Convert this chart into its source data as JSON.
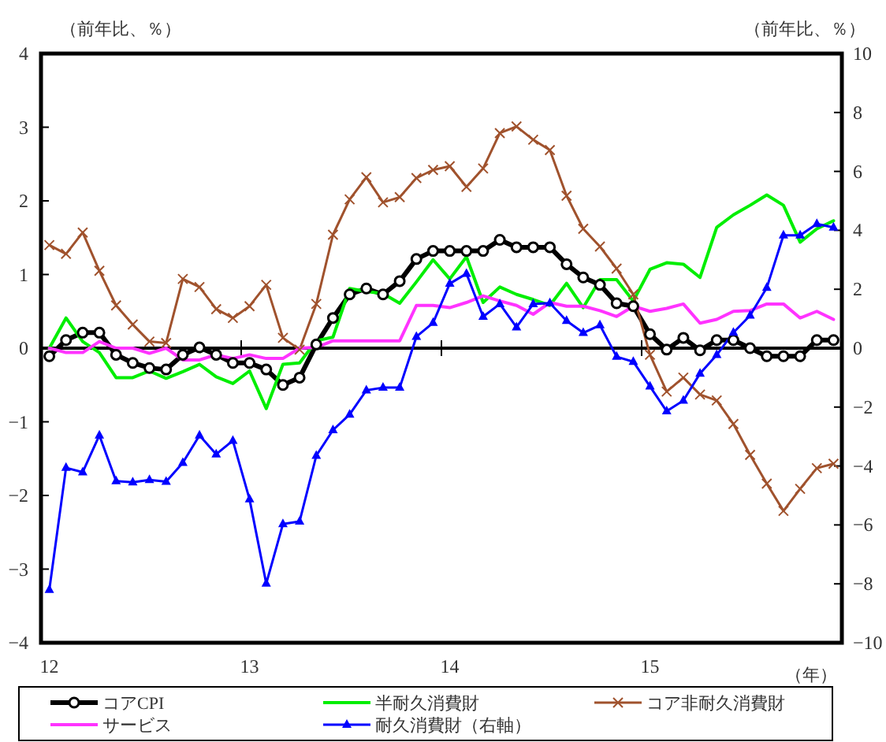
{
  "chart_data": {
    "type": "line",
    "ylabel": "（前年比、％）",
    "y2label": "（前年比、％）",
    "xlabel": "（年）",
    "categories": [
      "12",
      null,
      null,
      null,
      null,
      null,
      null,
      null,
      null,
      null,
      null,
      null,
      "13",
      null,
      null,
      null,
      null,
      null,
      null,
      null,
      null,
      null,
      null,
      null,
      "14",
      null,
      null,
      null,
      null,
      null,
      null,
      null,
      null,
      null,
      null,
      null,
      "15",
      null,
      null,
      null,
      null,
      null,
      null,
      null,
      null,
      null,
      null,
      null
    ],
    "ylim": [
      -4,
      4
    ],
    "yticks": [
      -4,
      -3,
      -2,
      -1,
      0,
      1,
      2,
      3,
      4
    ],
    "y2lim": [
      -10,
      10
    ],
    "y2ticks": [
      -10,
      -8,
      -6,
      -4,
      -2,
      0,
      2,
      4,
      6,
      8,
      10
    ],
    "legend": "bottom",
    "series": [
      {
        "name": "コアCPI",
        "color": "#000000",
        "marker": "circle",
        "values": [
          -0.11,
          0.11,
          0.21,
          0.21,
          -0.09,
          -0.2,
          -0.27,
          -0.29,
          -0.09,
          0.01,
          -0.09,
          -0.2,
          -0.2,
          -0.29,
          -0.5,
          -0.4,
          0.05,
          0.41,
          0.73,
          0.81,
          0.73,
          0.91,
          1.21,
          1.32,
          1.32,
          1.32,
          1.32,
          1.47,
          1.37,
          1.37,
          1.37,
          1.14,
          0.96,
          0.86,
          0.61,
          0.57,
          0.19,
          -0.02,
          0.14,
          -0.03,
          0.11,
          0.11,
          0,
          -0.11,
          -0.11,
          -0.11,
          0.11,
          0.11
        ]
      },
      {
        "name": "半耐久消費財",
        "color": "#00ee00",
        "marker": "none",
        "values": [
          0,
          0.41,
          0.09,
          -0.06,
          -0.4,
          -0.4,
          -0.31,
          -0.41,
          -0.32,
          -0.22,
          -0.39,
          -0.48,
          -0.31,
          -0.82,
          -0.22,
          -0.2,
          0.1,
          0.15,
          0.81,
          0.77,
          0.74,
          0.61,
          0.9,
          1.2,
          0.94,
          1.24,
          0.62,
          0.83,
          0.73,
          0.66,
          0.58,
          0.88,
          0.55,
          0.93,
          0.93,
          0.64,
          1.07,
          1.16,
          1.14,
          0.96,
          1.64,
          1.81,
          1.94,
          2.08,
          1.94,
          1.44,
          1.62,
          1.73
        ]
      },
      {
        "name": "コア非耐久消費財",
        "color": "#a0522d",
        "marker": "cross",
        "values": [
          1.4,
          1.28,
          1.57,
          1.05,
          0.58,
          0.32,
          0.09,
          0.07,
          0.94,
          0.83,
          0.53,
          0.41,
          0.57,
          0.86,
          0.14,
          -0.02,
          0.6,
          1.54,
          2.02,
          2.32,
          1.98,
          2.05,
          2.31,
          2.42,
          2.47,
          2.19,
          2.44,
          2.92,
          3.01,
          2.83,
          2.69,
          2.07,
          1.62,
          1.38,
          1.08,
          0.73,
          -0.09,
          -0.59,
          -0.4,
          -0.63,
          -0.71,
          -1.03,
          -1.45,
          -1.84,
          -2.21,
          -1.91,
          -1.63,
          -1.57
        ]
      },
      {
        "name": "サービス",
        "color": "#ff33ff",
        "marker": "none",
        "values": [
          0,
          -0.06,
          -0.06,
          0.09,
          0,
          0,
          -0.07,
          0,
          -0.16,
          -0.16,
          -0.09,
          -0.14,
          -0.09,
          -0.14,
          -0.14,
          0,
          0.01,
          0.1,
          0.1,
          0.1,
          0.1,
          0.1,
          0.58,
          0.58,
          0.55,
          0.62,
          0.71,
          0.64,
          0.58,
          0.46,
          0.62,
          0.57,
          0.57,
          0.51,
          0.43,
          0.57,
          0.5,
          0.54,
          0.6,
          0.34,
          0.39,
          0.5,
          0.51,
          0.6,
          0.6,
          0.41,
          0.5,
          0.39
        ]
      },
      {
        "name": "耐久消費財（右軸）",
        "color": "#0000ff",
        "marker": "triangle",
        "axis": "y2",
        "values": [
          -8.2,
          -4.06,
          -4.21,
          -2.96,
          -4.51,
          -4.55,
          -4.47,
          -4.53,
          -3.89,
          -2.96,
          -3.6,
          -3.14,
          -5.13,
          -7.99,
          -5.97,
          -5.88,
          -3.65,
          -2.78,
          -2.25,
          -1.43,
          -1.34,
          -1.34,
          0.39,
          0.86,
          2.19,
          2.53,
          1.07,
          1.5,
          0.71,
          1.5,
          1.53,
          0.93,
          0.52,
          0.78,
          -0.29,
          -0.46,
          -1.3,
          -2.14,
          -1.78,
          -0.86,
          -0.23,
          0.53,
          1.11,
          2.05,
          3.83,
          3.83,
          4.22,
          4.1
        ]
      }
    ]
  }
}
